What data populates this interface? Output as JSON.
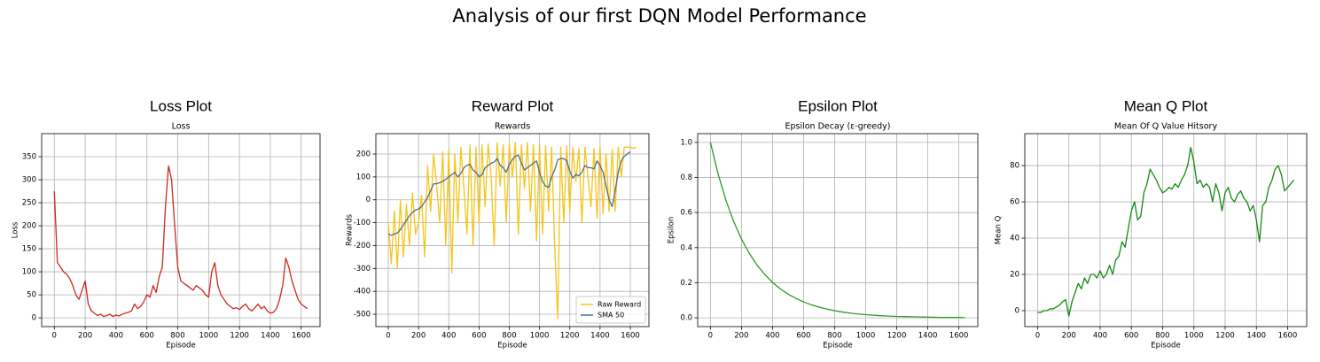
{
  "title": "Analysis of our first DQN Model Performance",
  "chart_data": [
    {
      "type": "line",
      "heading": "Loss Plot",
      "title": "Loss",
      "xlabel": "Episode",
      "ylabel": "Loss",
      "x": [
        0,
        20,
        40,
        60,
        80,
        100,
        120,
        140,
        160,
        180,
        200,
        220,
        240,
        260,
        280,
        300,
        320,
        340,
        360,
        380,
        400,
        420,
        440,
        460,
        480,
        500,
        520,
        540,
        560,
        580,
        600,
        620,
        640,
        660,
        680,
        700,
        720,
        740,
        760,
        780,
        800,
        820,
        840,
        860,
        880,
        900,
        920,
        940,
        960,
        980,
        1000,
        1020,
        1040,
        1060,
        1080,
        1100,
        1120,
        1140,
        1160,
        1180,
        1200,
        1220,
        1240,
        1260,
        1280,
        1300,
        1320,
        1340,
        1360,
        1380,
        1400,
        1420,
        1440,
        1460,
        1480,
        1500,
        1520,
        1540,
        1560,
        1580,
        1600,
        1620,
        1640
      ],
      "series": [
        {
          "name": "Loss",
          "color": "#cc2a1a",
          "values": [
            275,
            120,
            110,
            100,
            95,
            85,
            70,
            50,
            40,
            60,
            80,
            30,
            15,
            10,
            5,
            8,
            3,
            5,
            8,
            3,
            6,
            4,
            8,
            10,
            12,
            15,
            30,
            20,
            25,
            35,
            50,
            45,
            70,
            55,
            90,
            110,
            240,
            330,
            300,
            200,
            110,
            80,
            75,
            70,
            65,
            60,
            70,
            65,
            60,
            50,
            45,
            100,
            120,
            70,
            50,
            40,
            30,
            25,
            20,
            22,
            18,
            25,
            30,
            20,
            15,
            22,
            30,
            20,
            25,
            15,
            10,
            12,
            20,
            40,
            70,
            130,
            110,
            80,
            60,
            40,
            30,
            25,
            20
          ]
        }
      ],
      "xlim": [
        -82,
        1722
      ],
      "ylim": [
        -19,
        400
      ],
      "xticks": [
        0,
        200,
        400,
        600,
        800,
        1000,
        1200,
        1400,
        1600
      ],
      "yticks": [
        0,
        50,
        100,
        150,
        200,
        250,
        300,
        350
      ],
      "grid": true
    },
    {
      "type": "line",
      "heading": "Reward Plot",
      "title": "Rewards",
      "xlabel": "Episode",
      "ylabel": "Rewards",
      "x": [
        0,
        20,
        40,
        60,
        80,
        100,
        120,
        140,
        160,
        180,
        200,
        220,
        240,
        260,
        280,
        300,
        320,
        340,
        360,
        380,
        400,
        420,
        440,
        460,
        480,
        500,
        520,
        540,
        560,
        580,
        600,
        620,
        640,
        660,
        680,
        700,
        720,
        740,
        760,
        780,
        800,
        820,
        840,
        860,
        880,
        900,
        920,
        940,
        960,
        980,
        1000,
        1020,
        1040,
        1060,
        1080,
        1100,
        1120,
        1140,
        1160,
        1180,
        1200,
        1220,
        1240,
        1260,
        1280,
        1300,
        1320,
        1340,
        1360,
        1380,
        1400,
        1420,
        1440,
        1460,
        1480,
        1500,
        1520,
        1540,
        1560,
        1580,
        1600,
        1620,
        1640
      ],
      "series": [
        {
          "name": "Raw Reward",
          "color": "#f5c518",
          "values": [
            -100,
            -280,
            -50,
            -300,
            0,
            -250,
            -20,
            -200,
            30,
            -150,
            -100,
            20,
            -250,
            150,
            -50,
            200,
            60,
            -100,
            210,
            -200,
            220,
            -320,
            200,
            -100,
            230,
            50,
            -150,
            240,
            -200,
            230,
            -100,
            240,
            -30,
            245,
            100,
            -200,
            250,
            60,
            240,
            -100,
            245,
            100,
            250,
            -150,
            240,
            50,
            250,
            -50,
            240,
            -180,
            240,
            -150,
            235,
            -50,
            230,
            -200,
            -520,
            230,
            -100,
            235,
            -50,
            230,
            80,
            225,
            -100,
            230,
            100,
            -30,
            225,
            -80,
            230,
            -60,
            200,
            -50,
            220,
            -50,
            230,
            100,
            230,
            230,
            230,
            225,
            230
          ]
        },
        {
          "name": "SMA 50",
          "color": "#4f6d8f",
          "values": [
            -150,
            -155,
            -150,
            -145,
            -130,
            -110,
            -90,
            -70,
            -55,
            -45,
            -40,
            -30,
            -10,
            10,
            40,
            70,
            70,
            75,
            80,
            90,
            100,
            110,
            120,
            100,
            115,
            140,
            150,
            155,
            130,
            120,
            100,
            110,
            140,
            150,
            160,
            165,
            180,
            150,
            140,
            120,
            155,
            175,
            190,
            195,
            160,
            130,
            140,
            150,
            160,
            170,
            120,
            80,
            60,
            55,
            100,
            130,
            175,
            180,
            180,
            170,
            125,
            95,
            110,
            105,
            120,
            150,
            140,
            140,
            135,
            170,
            150,
            120,
            60,
            0,
            -30,
            40,
            120,
            170,
            190,
            200,
            210,
            null,
            null
          ]
        }
      ],
      "xlim": [
        -82,
        1723
      ],
      "ylim": [
        -554,
        289
      ],
      "xticks": [
        0,
        200,
        400,
        600,
        800,
        1000,
        1200,
        1400,
        1600
      ],
      "yticks": [
        -500,
        -400,
        -300,
        -200,
        -100,
        0,
        100,
        200
      ],
      "grid": true,
      "legend": "lower right"
    },
    {
      "type": "line",
      "heading": "Epsilon Plot",
      "title": "Epsilon Decay (ε-greedy)",
      "xlabel": "Episode",
      "ylabel": "Epsilon",
      "x": [
        0,
        50,
        100,
        150,
        200,
        250,
        300,
        350,
        400,
        450,
        500,
        550,
        600,
        650,
        700,
        750,
        800,
        850,
        900,
        950,
        1000,
        1050,
        1100,
        1150,
        1200,
        1250,
        1300,
        1350,
        1400,
        1450,
        1500,
        1550,
        1600,
        1640
      ],
      "series": [
        {
          "name": "Epsilon",
          "color": "#2a9a2a",
          "values": [
            1,
            0.819,
            0.67,
            0.549,
            0.449,
            0.368,
            0.301,
            0.247,
            0.202,
            0.165,
            0.135,
            0.111,
            0.091,
            0.074,
            0.061,
            0.05,
            0.041,
            0.033,
            0.027,
            0.022,
            0.018,
            0.015,
            0.012,
            0.01,
            0.008,
            0.007,
            0.006,
            0.005,
            0.004,
            0.003,
            0.002,
            0.002,
            0.002,
            0.001
          ]
        }
      ],
      "xlim": [
        -82,
        1722
      ],
      "ylim": [
        -0.05,
        1.05
      ],
      "xticks": [
        0,
        200,
        400,
        600,
        800,
        1000,
        1200,
        1400,
        1600
      ],
      "yticks": [
        {
          "value": 0,
          "label": "0.0"
        },
        0.2,
        0.4,
        0.6,
        0.8,
        {
          "value": 1,
          "label": "1.0"
        }
      ],
      "grid": true
    },
    {
      "type": "line",
      "heading": "Mean Q Plot",
      "title": "Mean Of Q Value Hitsory",
      "xlabel": "Episode",
      "ylabel": "Mean Q",
      "x": [
        0,
        20,
        40,
        60,
        80,
        100,
        120,
        140,
        160,
        180,
        200,
        220,
        240,
        260,
        280,
        300,
        320,
        340,
        360,
        380,
        400,
        420,
        440,
        460,
        480,
        500,
        520,
        540,
        560,
        580,
        600,
        620,
        640,
        660,
        680,
        700,
        720,
        740,
        760,
        780,
        800,
        820,
        840,
        860,
        880,
        900,
        920,
        940,
        960,
        980,
        1000,
        1020,
        1040,
        1060,
        1080,
        1100,
        1120,
        1140,
        1160,
        1180,
        1200,
        1220,
        1240,
        1260,
        1280,
        1300,
        1320,
        1340,
        1360,
        1380,
        1400,
        1420,
        1440,
        1460,
        1480,
        1500,
        1520,
        1540,
        1560,
        1580,
        1600,
        1620,
        1640
      ],
      "series": [
        {
          "name": "Mean Q",
          "color": "#138a13",
          "values": [
            -1,
            -1,
            0,
            0,
            1,
            1,
            2,
            3,
            5,
            6,
            -3,
            5,
            10,
            15,
            12,
            18,
            15,
            20,
            20,
            18,
            22,
            18,
            20,
            25,
            20,
            28,
            30,
            38,
            35,
            45,
            55,
            60,
            50,
            52,
            65,
            70,
            78,
            75,
            72,
            68,
            65,
            66,
            68,
            67,
            70,
            68,
            72,
            75,
            80,
            90,
            82,
            70,
            72,
            68,
            70,
            68,
            60,
            70,
            65,
            55,
            65,
            68,
            62,
            60,
            64,
            66,
            62,
            60,
            55,
            58,
            50,
            38,
            58,
            60,
            68,
            72,
            78,
            80,
            75,
            66,
            68,
            70,
            72
          ]
        }
      ],
      "xlim": [
        -82,
        1722
      ],
      "ylim": [
        -8.8,
        97.6
      ],
      "xticks": [
        0,
        200,
        400,
        600,
        800,
        1000,
        1200,
        1400,
        1600
      ],
      "yticks": [
        0,
        20,
        40,
        60,
        80
      ],
      "grid": true
    }
  ]
}
